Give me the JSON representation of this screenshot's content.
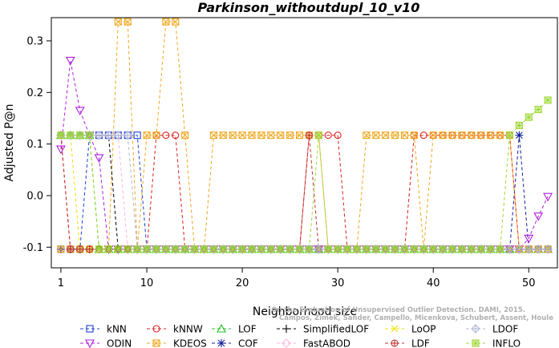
{
  "chart_data": {
    "type": "line",
    "title": "Parkinson_withoutdupl_10_v10",
    "xlabel": "Neighborhood size",
    "ylabel": "Adjusted P@n",
    "xlim": [
      0,
      53
    ],
    "ylim": [
      -0.14,
      0.345
    ],
    "xticks": [
      "1",
      "10",
      "20",
      "30",
      "40",
      "50"
    ],
    "yticks": [
      "-0.1",
      "0.0",
      "0.1",
      "0.2",
      "0.3"
    ],
    "grid": false,
    "legend_position": "bottom",
    "watermark": [
      "Campos, Zimek, Sander, Campello, Micenkova, Schubert, Assent, Houle",
      "On the Evaluation of Unsupervised Outlier Detection. DAMI, 2015."
    ],
    "x": [
      1,
      2,
      3,
      4,
      5,
      6,
      7,
      8,
      9,
      10,
      11,
      12,
      13,
      14,
      15,
      16,
      17,
      18,
      19,
      20,
      21,
      22,
      23,
      24,
      25,
      26,
      27,
      28,
      29,
      30,
      31,
      32,
      33,
      34,
      35,
      36,
      37,
      38,
      39,
      40,
      41,
      42,
      43,
      44,
      45,
      46,
      47,
      48,
      49,
      50,
      51,
      52
    ],
    "series": [
      {
        "name": "kNN",
        "color": "#1f3fd6",
        "marker": "square",
        "values": [
          -0.104,
          -0.104,
          -0.104,
          0.117,
          0.117,
          0.117,
          0.117,
          0.117,
          0.117,
          -0.104,
          -0.104,
          -0.104,
          -0.104,
          -0.104,
          -0.104,
          -0.104,
          -0.104,
          -0.104,
          -0.104,
          -0.104,
          -0.104,
          -0.104,
          -0.104,
          -0.104,
          -0.104,
          -0.104,
          -0.104,
          -0.104,
          -0.104,
          -0.104,
          -0.104,
          -0.104,
          -0.104,
          -0.104,
          -0.104,
          -0.104,
          -0.104,
          -0.104,
          -0.104,
          -0.104,
          -0.104,
          -0.104,
          -0.104,
          -0.104,
          -0.104,
          -0.104,
          -0.104,
          -0.104,
          -0.104,
          -0.104,
          -0.104,
          -0.104
        ]
      },
      {
        "name": "kNNW",
        "color": "#e02020",
        "marker": "circle",
        "values": [
          0.117,
          -0.104,
          -0.104,
          -0.104,
          -0.104,
          -0.104,
          -0.104,
          -0.104,
          -0.104,
          -0.104,
          0.117,
          0.117,
          0.117,
          -0.104,
          -0.104,
          -0.104,
          -0.104,
          -0.104,
          -0.104,
          -0.104,
          -0.104,
          -0.104,
          -0.104,
          -0.104,
          -0.104,
          -0.104,
          0.117,
          0.117,
          0.117,
          0.117,
          -0.104,
          -0.104,
          -0.104,
          -0.104,
          -0.104,
          -0.104,
          -0.104,
          0.117,
          0.117,
          0.117,
          0.117,
          0.117,
          0.117,
          0.117,
          0.117,
          0.117,
          0.117,
          0.117,
          -0.104,
          -0.104,
          -0.104,
          -0.104
        ]
      },
      {
        "name": "LOF",
        "color": "#20c020",
        "marker": "triangle-up",
        "values": [
          0.117,
          0.117,
          0.117,
          0.117,
          -0.104,
          -0.104,
          -0.104,
          -0.104,
          -0.104,
          -0.104,
          -0.104,
          -0.104,
          -0.104,
          -0.104,
          -0.104,
          -0.104,
          -0.104,
          -0.104,
          -0.104,
          -0.104,
          -0.104,
          -0.104,
          -0.104,
          -0.104,
          -0.104,
          -0.104,
          -0.104,
          -0.104,
          -0.104,
          -0.104,
          -0.104,
          -0.104,
          -0.104,
          -0.104,
          -0.104,
          -0.104,
          -0.104,
          -0.104,
          -0.104,
          -0.104,
          -0.104,
          -0.104,
          -0.104,
          -0.104,
          -0.104,
          -0.104,
          -0.104,
          -0.104,
          -0.104,
          -0.104,
          -0.104,
          -0.104
        ]
      },
      {
        "name": "COF",
        "color": "#10209a",
        "marker": "asterisk",
        "values": [
          -0.104,
          -0.104,
          -0.104,
          -0.104,
          -0.104,
          -0.104,
          -0.104,
          -0.104,
          -0.104,
          -0.104,
          -0.104,
          -0.104,
          -0.104,
          -0.104,
          -0.104,
          -0.104,
          -0.104,
          -0.104,
          -0.104,
          -0.104,
          -0.104,
          -0.104,
          -0.104,
          -0.104,
          -0.104,
          -0.104,
          -0.104,
          -0.104,
          -0.104,
          -0.104,
          -0.104,
          -0.104,
          -0.104,
          -0.104,
          -0.104,
          -0.104,
          -0.104,
          -0.104,
          -0.104,
          -0.104,
          -0.104,
          -0.104,
          -0.104,
          -0.104,
          -0.104,
          -0.104,
          -0.104,
          -0.104,
          0.117,
          -0.104,
          -0.104,
          -0.104
        ]
      },
      {
        "name": "ODIN",
        "color": "#b020e0",
        "marker": "triangle-down",
        "values": [
          0.09,
          0.262,
          0.165,
          0.117,
          0.073,
          -0.104,
          -0.104,
          -0.104,
          -0.104,
          -0.104,
          -0.104,
          -0.104,
          -0.104,
          -0.104,
          -0.104,
          -0.104,
          -0.104,
          -0.104,
          -0.104,
          -0.104,
          -0.104,
          -0.104,
          -0.104,
          -0.104,
          -0.104,
          -0.104,
          -0.104,
          -0.104,
          -0.104,
          -0.104,
          -0.104,
          -0.104,
          -0.104,
          -0.104,
          -0.104,
          -0.104,
          -0.104,
          -0.104,
          -0.104,
          -0.104,
          -0.104,
          -0.104,
          -0.104,
          -0.104,
          -0.104,
          -0.104,
          -0.104,
          -0.104,
          -0.104,
          -0.083,
          -0.04,
          -0.002
        ]
      },
      {
        "name": "KDEOS",
        "color": "#f0a820",
        "marker": "square-x",
        "values": [
          -0.104,
          -0.104,
          -0.104,
          -0.104,
          -0.104,
          -0.104,
          0.337,
          0.337,
          -0.104,
          0.117,
          0.117,
          0.337,
          0.337,
          0.117,
          -0.104,
          -0.104,
          0.117,
          0.117,
          0.117,
          0.117,
          0.117,
          0.117,
          0.117,
          0.117,
          0.117,
          0.117,
          0.117,
          0.117,
          -0.104,
          -0.104,
          -0.104,
          -0.104,
          0.117,
          0.117,
          0.117,
          0.117,
          0.117,
          0.117,
          -0.104,
          0.117,
          0.117,
          0.117,
          0.117,
          0.117,
          0.117,
          0.117,
          0.117,
          0.117,
          -0.104,
          -0.104,
          -0.104,
          -0.104
        ]
      },
      {
        "name": "SimplifiedLOF",
        "color": "#000000",
        "marker": "plus",
        "values": [
          0.117,
          0.117,
          0.117,
          0.117,
          0.117,
          0.117,
          -0.104,
          -0.104,
          -0.104,
          -0.104,
          -0.104,
          -0.104,
          -0.104,
          -0.104,
          -0.104,
          -0.104,
          -0.104,
          -0.104,
          -0.104,
          -0.104,
          -0.104,
          -0.104,
          -0.104,
          -0.104,
          -0.104,
          -0.104,
          -0.104,
          -0.104,
          -0.104,
          -0.104,
          -0.104,
          -0.104,
          -0.104,
          -0.104,
          -0.104,
          -0.104,
          -0.104,
          -0.104,
          -0.104,
          -0.104,
          -0.104,
          -0.104,
          -0.104,
          -0.104,
          -0.104,
          -0.104,
          -0.104,
          -0.104,
          -0.104,
          -0.104,
          -0.104,
          -0.104
        ]
      },
      {
        "name": "FastABOD",
        "color": "#ffb6e0",
        "marker": "diamond",
        "values": [
          0.117,
          0.117,
          0.117,
          0.117,
          0.117,
          0.117,
          0.117,
          -0.104,
          -0.104,
          -0.104,
          -0.104,
          -0.104,
          -0.104,
          -0.104,
          -0.104,
          -0.104,
          -0.104,
          -0.104,
          -0.104,
          -0.104,
          -0.104,
          -0.104,
          -0.104,
          -0.104,
          -0.104,
          -0.104,
          -0.104,
          -0.104,
          -0.104,
          -0.104,
          -0.104,
          -0.104,
          -0.104,
          -0.104,
          -0.104,
          -0.104,
          -0.104,
          -0.104,
          -0.104,
          -0.104,
          -0.104,
          -0.104,
          -0.104,
          -0.104,
          -0.104,
          -0.104,
          -0.104,
          -0.104,
          -0.104,
          -0.104,
          -0.104,
          -0.104
        ]
      },
      {
        "name": "LoOP",
        "color": "#f0e000",
        "marker": "x",
        "values": [
          0.117,
          0.117,
          -0.104,
          -0.104,
          -0.104,
          -0.104,
          -0.104,
          -0.104,
          -0.104,
          -0.104,
          -0.104,
          -0.104,
          -0.104,
          -0.104,
          -0.104,
          -0.104,
          -0.104,
          -0.104,
          -0.104,
          -0.104,
          -0.104,
          -0.104,
          -0.104,
          -0.104,
          -0.104,
          -0.104,
          -0.104,
          -0.104,
          -0.104,
          -0.104,
          -0.104,
          -0.104,
          -0.104,
          -0.104,
          -0.104,
          -0.104,
          -0.104,
          -0.104,
          -0.104,
          -0.104,
          -0.104,
          -0.104,
          -0.104,
          -0.104,
          -0.104,
          -0.104,
          -0.104,
          -0.104,
          -0.104,
          -0.104,
          -0.104,
          -0.104
        ]
      },
      {
        "name": "LDF",
        "color": "#c03030",
        "marker": "circle-plus",
        "values": [
          0.117,
          -0.104,
          -0.104,
          -0.104,
          -0.104,
          -0.104,
          -0.104,
          -0.104,
          -0.104,
          -0.104,
          -0.104,
          -0.104,
          -0.104,
          -0.104,
          -0.104,
          -0.104,
          -0.104,
          -0.104,
          -0.104,
          -0.104,
          -0.104,
          -0.104,
          -0.104,
          -0.104,
          -0.104,
          -0.104,
          0.117,
          -0.104,
          -0.104,
          -0.104,
          -0.104,
          -0.104,
          -0.104,
          -0.104,
          -0.104,
          -0.104,
          -0.104,
          -0.104,
          -0.104,
          -0.104,
          -0.104,
          -0.104,
          -0.104,
          -0.104,
          -0.104,
          -0.104,
          -0.104,
          -0.104,
          -0.104,
          -0.104,
          -0.104,
          -0.104
        ]
      },
      {
        "name": "LDOF",
        "color": "#b0b8d8",
        "marker": "diamond-plus",
        "values": [
          0.117,
          0.117,
          0.117,
          0.117,
          0.117,
          0.117,
          0.117,
          0.117,
          -0.104,
          -0.104,
          -0.104,
          -0.104,
          -0.104,
          -0.104,
          -0.104,
          -0.104,
          -0.104,
          -0.104,
          -0.104,
          -0.104,
          -0.104,
          -0.104,
          -0.104,
          -0.104,
          -0.104,
          -0.104,
          -0.104,
          -0.104,
          -0.104,
          -0.104,
          -0.104,
          -0.104,
          -0.104,
          -0.104,
          -0.104,
          -0.104,
          -0.104,
          -0.104,
          -0.104,
          -0.104,
          -0.104,
          -0.104,
          -0.104,
          -0.104,
          -0.104,
          -0.104,
          -0.104,
          -0.104,
          -0.104,
          -0.104,
          -0.104,
          -0.104
        ]
      },
      {
        "name": "INFLO",
        "color": "#a0d838",
        "marker": "square-star",
        "values": [
          0.117,
          0.117,
          0.117,
          0.117,
          -0.104,
          -0.104,
          -0.104,
          -0.104,
          -0.104,
          -0.104,
          -0.104,
          -0.104,
          -0.104,
          -0.104,
          -0.104,
          -0.104,
          -0.104,
          -0.104,
          -0.104,
          -0.104,
          -0.104,
          -0.104,
          -0.104,
          -0.104,
          -0.104,
          -0.104,
          -0.104,
          0.117,
          -0.104,
          -0.104,
          -0.104,
          -0.104,
          -0.104,
          -0.104,
          -0.104,
          -0.104,
          -0.104,
          -0.104,
          -0.104,
          -0.104,
          -0.104,
          -0.104,
          -0.104,
          -0.104,
          -0.104,
          -0.104,
          -0.104,
          0.117,
          0.136,
          0.152,
          0.167,
          0.185
        ]
      }
    ]
  }
}
